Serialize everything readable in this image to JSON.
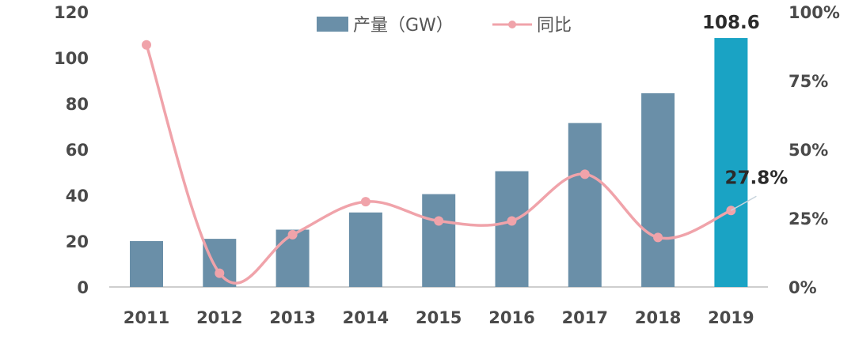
{
  "chart_data": {
    "type": "bar",
    "categories": [
      "2011",
      "2012",
      "2013",
      "2014",
      "2015",
      "2016",
      "2017",
      "2018",
      "2019"
    ],
    "series": [
      {
        "name": "产量（GW）",
        "type": "bar",
        "axis": "left",
        "values": [
          20,
          21,
          25,
          32.5,
          40.5,
          50.5,
          71.5,
          84.5,
          108.6
        ],
        "color": "#6a8fa8",
        "highlight_color": "#1aa3c4"
      },
      {
        "name": "同比",
        "type": "line",
        "axis": "right",
        "values": [
          88,
          5,
          19,
          31,
          24,
          24,
          41,
          18,
          27.8
        ],
        "color": "#f0a3aa",
        "unit": "%"
      }
    ],
    "y_left": {
      "ticks": [
        "0",
        "20",
        "40",
        "60",
        "80",
        "100",
        "120"
      ],
      "ylim": [
        0,
        120
      ]
    },
    "y_right": {
      "ticks": [
        "0%",
        "25%",
        "50%",
        "75%",
        "100%"
      ],
      "ylim": [
        0,
        100
      ]
    },
    "annotations": [
      {
        "text": "108.6",
        "category": "2019",
        "series": "产量（GW）"
      },
      {
        "text": "27.8%",
        "category": "2019",
        "series": "同比"
      }
    ],
    "legend": {
      "position": "top-center",
      "items": [
        "产量（GW）",
        "同比"
      ]
    },
    "grid": false
  }
}
